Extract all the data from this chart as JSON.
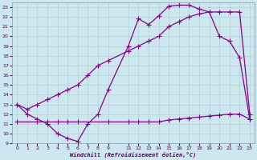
{
  "xlabel": "Windchill (Refroidissement éolien,°C)",
  "bg_color": "#cce8ee",
  "line_color": "#880088",
  "markersize": 2.5,
  "linewidth": 0.9,
  "xlim": [
    -0.5,
    23.5
  ],
  "ylim": [
    9,
    23.5
  ],
  "xticks": [
    0,
    1,
    2,
    3,
    4,
    5,
    6,
    7,
    8,
    9,
    11,
    12,
    13,
    14,
    15,
    16,
    17,
    18,
    19,
    20,
    21,
    22,
    23
  ],
  "yticks": [
    9,
    10,
    11,
    12,
    13,
    14,
    15,
    16,
    17,
    18,
    19,
    20,
    21,
    22,
    23
  ],
  "grid_color": "#aacccc",
  "line1_x": [
    0,
    1,
    2,
    3,
    4,
    5,
    6,
    7,
    8,
    9,
    11,
    12,
    13,
    14,
    15,
    16,
    17,
    18,
    19,
    20,
    21,
    22,
    23
  ],
  "line1_y": [
    13,
    12,
    11.5,
    11,
    10,
    9.5,
    9.2,
    11,
    12,
    14.5,
    19,
    21.8,
    21.2,
    22.1,
    23.1,
    23.2,
    23.2,
    22.8,
    22.5,
    20,
    19.5,
    17.8,
    11.5
  ],
  "line2_x": [
    0,
    2,
    3,
    4,
    5,
    6,
    9,
    11,
    12,
    13,
    14,
    15,
    16,
    17,
    18,
    19,
    20,
    21,
    22,
    23
  ],
  "line2_y": [
    11.2,
    11.2,
    11.2,
    11.2,
    11.2,
    11.2,
    11.2,
    11.2,
    11.2,
    11.2,
    11.2,
    11.4,
    11.5,
    11.6,
    11.7,
    11.8,
    11.9,
    12.0,
    12.0,
    11.5
  ],
  "line3_x": [
    0,
    1,
    2,
    3,
    4,
    5,
    6,
    7,
    8,
    9,
    11,
    12,
    13,
    14,
    15,
    16,
    17,
    18,
    19,
    20,
    21,
    22,
    23
  ],
  "line3_y": [
    13,
    12.5,
    13,
    13.5,
    14,
    14.5,
    15,
    16,
    17,
    17.5,
    18.5,
    19,
    19.5,
    20,
    21,
    21.5,
    22,
    22.3,
    22.5,
    22.5,
    22.5,
    22.5,
    12
  ]
}
